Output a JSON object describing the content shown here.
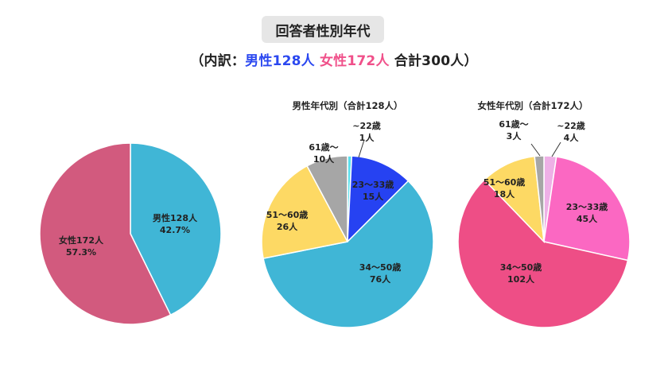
{
  "title": "回答者性別年代",
  "subtitle": {
    "open": "（内訳：",
    "male": "男性128人",
    "female": "女性172人",
    "total": "合計300人",
    "close": "）"
  },
  "chart_data": [
    {
      "type": "pie",
      "title": "",
      "slices": [
        {
          "label": "男性128人",
          "value": 42.7,
          "value_label": "42.7%",
          "color": "#40b6d6"
        },
        {
          "label": "女性172人",
          "value": 57.3,
          "value_label": "57.3%",
          "color": "#d25a7e"
        }
      ]
    },
    {
      "type": "pie",
      "title": "男性年代別（合計128人）",
      "slices": [
        {
          "label": "~22歳",
          "value": 1,
          "value_label": "1人",
          "color": "#5ce0ee"
        },
        {
          "label": "23～33歳",
          "value": 15,
          "value_label": "15人",
          "color": "#2642f2"
        },
        {
          "label": "34～50歳",
          "value": 76,
          "value_label": "76人",
          "color": "#40b6d6"
        },
        {
          "label": "51～60歳",
          "value": 26,
          "value_label": "26人",
          "color": "#fdd964"
        },
        {
          "label": "61歳～",
          "value": 10,
          "value_label": "10人",
          "color": "#a6a6a6"
        }
      ]
    },
    {
      "type": "pie",
      "title": "女性年代別（合計172人）",
      "slices": [
        {
          "label": "~22歳",
          "value": 4,
          "value_label": "4人",
          "color": "#eeb0e6"
        },
        {
          "label": "23～33歳",
          "value": 45,
          "value_label": "45人",
          "color": "#fb68c2"
        },
        {
          "label": "34～50歳",
          "value": 102,
          "value_label": "102人",
          "color": "#ee4e86"
        },
        {
          "label": "51～60歳",
          "value": 18,
          "value_label": "18人",
          "color": "#fdd964"
        },
        {
          "label": "61歳～",
          "value": 3,
          "value_label": "3人",
          "color": "#a6a6a6"
        }
      ]
    }
  ]
}
